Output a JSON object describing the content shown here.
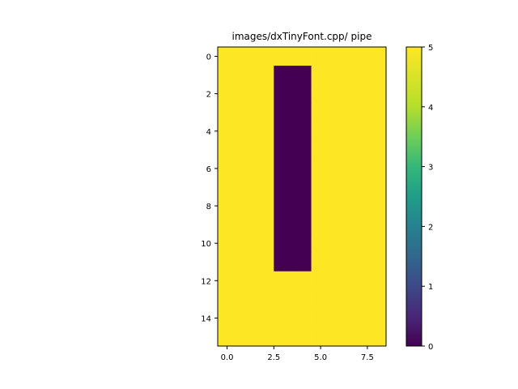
{
  "chart_data": {
    "type": "heatmap",
    "title": "images/dxTinyFont.cpp/ pipe",
    "xlabel": "",
    "ylabel": "",
    "xlim": [
      -0.5,
      8.5
    ],
    "ylim": [
      15.5,
      -0.5
    ],
    "x_ticks": [
      0.0,
      2.5,
      5.0,
      7.5
    ],
    "x_tick_labels": [
      "0.0",
      "2.5",
      "5.0",
      "7.5"
    ],
    "y_ticks": [
      0,
      2,
      4,
      6,
      8,
      10,
      12,
      14
    ],
    "y_tick_labels": [
      "0",
      "2",
      "4",
      "6",
      "8",
      "10",
      "12",
      "14"
    ],
    "colormap": "viridis",
    "vmin": 0,
    "vmax": 5,
    "colorbar_ticks": [
      0,
      1,
      2,
      3,
      4,
      5
    ],
    "colorbar_tick_labels": [
      "0",
      "1",
      "2",
      "3",
      "4",
      "5"
    ],
    "grid": false,
    "colors": {
      "low": "#440154",
      "high": "#fde725"
    },
    "rows": [
      [
        5,
        5,
        5,
        5,
        5,
        5,
        5,
        5,
        5
      ],
      [
        5,
        5,
        5,
        0,
        0,
        5,
        5,
        5,
        5
      ],
      [
        5,
        5,
        5,
        0,
        0,
        5,
        5,
        5,
        5
      ],
      [
        5,
        5,
        5,
        0,
        0,
        5,
        5,
        5,
        5
      ],
      [
        5,
        5,
        5,
        0,
        0,
        5,
        5,
        5,
        5
      ],
      [
        5,
        5,
        5,
        0,
        0,
        5,
        5,
        5,
        5
      ],
      [
        5,
        5,
        5,
        0,
        0,
        5,
        5,
        5,
        5
      ],
      [
        5,
        5,
        5,
        0,
        0,
        5,
        5,
        5,
        5
      ],
      [
        5,
        5,
        5,
        0,
        0,
        5,
        5,
        5,
        5
      ],
      [
        5,
        5,
        5,
        0,
        0,
        5,
        5,
        5,
        5
      ],
      [
        5,
        5,
        5,
        0,
        0,
        5,
        5,
        5,
        5
      ],
      [
        5,
        5,
        5,
        0,
        0,
        5,
        5,
        5,
        5
      ],
      [
        5,
        5,
        5,
        5,
        5,
        5,
        5,
        5,
        5
      ],
      [
        5,
        5,
        5,
        5,
        5,
        5,
        5,
        5,
        5
      ],
      [
        5,
        5,
        5,
        5,
        5,
        5,
        5,
        5,
        5
      ],
      [
        5,
        5,
        5,
        5,
        5,
        5,
        5,
        5,
        5
      ]
    ]
  }
}
